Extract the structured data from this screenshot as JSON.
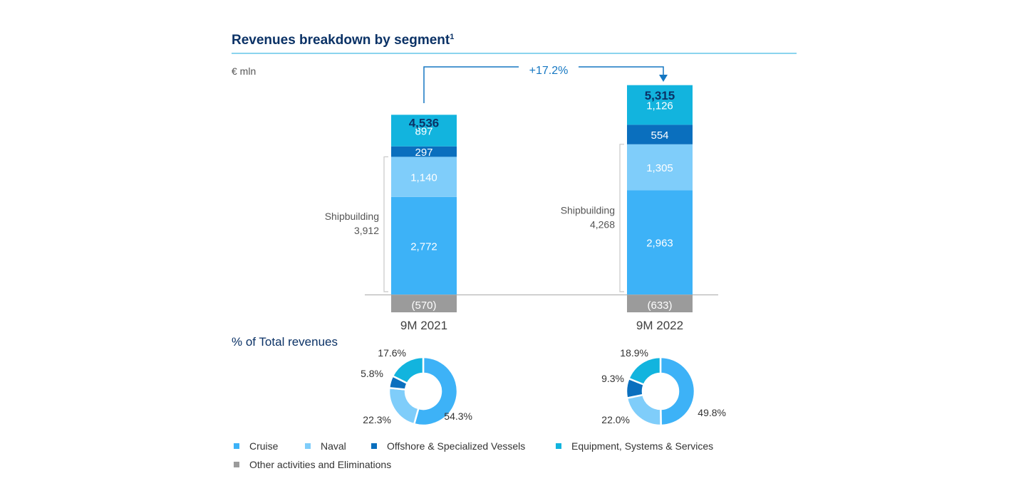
{
  "title": "Revenues breakdown by segment",
  "title_footnote": "1",
  "unit": "€ mln",
  "growth_label": "+17.2%",
  "donut_section_title": "% of Total revenues",
  "colors": {
    "title": "#0b3266",
    "rule": "#64c6e8",
    "Cruise": "#3db2f7",
    "Naval": "#7fcdfa",
    "Offshore & Specialized Vessels": "#0a6fbe",
    "Equipment, Systems & Services": "#12b4de",
    "Other activities and Eliminations": "#9b9b9b",
    "arrow": "#1577c2",
    "bracket": "#c8c8c8"
  },
  "legend": [
    "Cruise",
    "Naval",
    "Offshore & Specialized Vessels",
    "Equipment, Systems & Services",
    "Other activities and Eliminations"
  ],
  "chart_data": [
    {
      "type": "bar",
      "stacked": true,
      "categories": [
        "9M 2021",
        "9M 2022"
      ],
      "totals": [
        4536,
        5315
      ],
      "total_labels": [
        "4,536",
        "5,315"
      ],
      "series": [
        {
          "name": "Cruise",
          "values": [
            2772,
            2963
          ],
          "labels": [
            "2,772",
            "2,963"
          ]
        },
        {
          "name": "Naval",
          "values": [
            1140,
            1305
          ],
          "labels": [
            "1,140",
            "1,305"
          ]
        },
        {
          "name": "Offshore & Specialized Vessels",
          "values": [
            297,
            554
          ],
          "labels": [
            "297",
            "554"
          ]
        },
        {
          "name": "Equipment, Systems & Services",
          "values": [
            897,
            1126
          ],
          "labels": [
            "897",
            "1,126"
          ]
        },
        {
          "name": "Other activities and Eliminations",
          "values": [
            -570,
            -633
          ],
          "labels": [
            "(570)",
            "(633)"
          ]
        }
      ],
      "groups": [
        {
          "name": "Shipbuilding",
          "values": [
            3912,
            4268
          ],
          "labels": [
            "3,912",
            "4,268"
          ]
        }
      ],
      "growth": "+17.2%",
      "ylabel": "€ mln"
    },
    {
      "type": "pie",
      "donut": true,
      "period": "9M 2021",
      "slices": [
        {
          "name": "Cruise",
          "value": 54.3,
          "label": "54.3%"
        },
        {
          "name": "Naval",
          "value": 22.3,
          "label": "22.3%"
        },
        {
          "name": "Offshore & Specialized Vessels",
          "value": 5.8,
          "label": "5.8%"
        },
        {
          "name": "Equipment, Systems & Services",
          "value": 17.6,
          "label": "17.6%"
        }
      ]
    },
    {
      "type": "pie",
      "donut": true,
      "period": "9M 2022",
      "slices": [
        {
          "name": "Cruise",
          "value": 49.8,
          "label": "49.8%"
        },
        {
          "name": "Naval",
          "value": 22.0,
          "label": "22.0%"
        },
        {
          "name": "Offshore & Specialized Vessels",
          "value": 9.3,
          "label": "9.3%"
        },
        {
          "name": "Equipment, Systems & Services",
          "value": 18.9,
          "label": "18.9%"
        }
      ]
    }
  ]
}
